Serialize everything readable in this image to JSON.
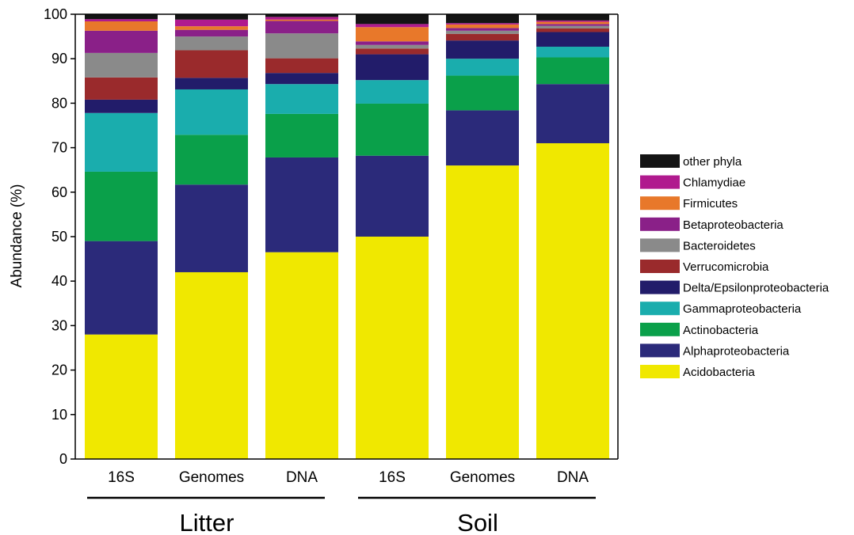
{
  "chart_data": {
    "type": "bar",
    "stacked": true,
    "ylabel": "Abundance (%)",
    "ylim": [
      0,
      100
    ],
    "yticks": [
      0,
      10,
      20,
      30,
      40,
      50,
      60,
      70,
      80,
      90,
      100
    ],
    "grid": false,
    "legend_position": "right",
    "categories": [
      "16S",
      "Genomes",
      "DNA",
      "16S",
      "Genomes",
      "DNA"
    ],
    "groups": [
      {
        "label": "Litter",
        "categories": [
          0,
          1,
          2
        ]
      },
      {
        "label": "Soil",
        "categories": [
          3,
          4,
          5
        ]
      }
    ],
    "series": [
      {
        "name": "Acidobacteria",
        "color": "#f0e800",
        "values": [
          28,
          42,
          46.5,
          50,
          66,
          71
        ]
      },
      {
        "name": "Alphaproteobacteria",
        "color": "#2b2a7a",
        "values": [
          21,
          19.7,
          21.3,
          18.2,
          12.4,
          13.3
        ]
      },
      {
        "name": "Actinobacteria",
        "color": "#0aa04a",
        "values": [
          15.6,
          11.2,
          9.8,
          11.7,
          7.8,
          6
        ]
      },
      {
        "name": "Gammaproteobacteria",
        "color": "#1aadad",
        "values": [
          13.2,
          10.2,
          6.7,
          5.3,
          3.8,
          2.4
        ]
      },
      {
        "name": "Delta/Epsilonproteobacteria",
        "color": "#221c6a",
        "values": [
          3,
          2.6,
          2.5,
          5.8,
          4.1,
          3.3
        ]
      },
      {
        "name": "Verrucomicrobia",
        "color": "#9a2a2c",
        "values": [
          5,
          6.2,
          3.3,
          1.3,
          1.5,
          0.8
        ]
      },
      {
        "name": "Bacteroidetes",
        "color": "#8a8a8a",
        "values": [
          5.5,
          3.1,
          5.6,
          0.8,
          0.7,
          0.6
        ]
      },
      {
        "name": "Betaproteobacteria",
        "color": "#8a2088",
        "values": [
          5,
          1.5,
          2.8,
          0.8,
          0.6,
          0.4
        ]
      },
      {
        "name": "Firmicutes",
        "color": "#e8782a",
        "values": [
          2.1,
          0.8,
          0.3,
          3.2,
          0.8,
          0.5
        ]
      },
      {
        "name": "Chlamydiae",
        "color": "#b01a8e",
        "values": [
          0.5,
          1.5,
          0.6,
          0.7,
          0.3,
          0.3
        ]
      },
      {
        "name": "other phyla",
        "color": "#141414",
        "values": [
          1.1,
          1.2,
          0.6,
          2.2,
          2,
          1.4
        ]
      }
    ]
  }
}
